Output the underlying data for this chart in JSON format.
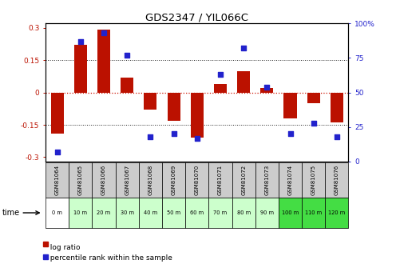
{
  "title": "GDS2347 / YIL066C",
  "samples": [
    "GSM81064",
    "GSM81065",
    "GSM81066",
    "GSM81067",
    "GSM81068",
    "GSM81069",
    "GSM81070",
    "GSM81071",
    "GSM81072",
    "GSM81073",
    "GSM81074",
    "GSM81075",
    "GSM81076"
  ],
  "time_labels": [
    "0 m",
    "10 m",
    "20 m",
    "30 m",
    "40 m",
    "50 m",
    "60 m",
    "70 m",
    "80 m",
    "90 m",
    "100 m",
    "110 m",
    "120 m"
  ],
  "log_ratio": [
    -0.19,
    0.22,
    0.29,
    0.07,
    -0.08,
    -0.13,
    -0.21,
    0.04,
    0.1,
    0.02,
    -0.12,
    -0.05,
    -0.14
  ],
  "percentile": [
    7,
    87,
    93,
    77,
    18,
    20,
    17,
    63,
    82,
    54,
    20,
    28,
    18
  ],
  "bar_color": "#bb1100",
  "dot_color": "#2222cc",
  "ylim_left": [
    -0.32,
    0.32
  ],
  "ylim_right": [
    0,
    100
  ],
  "yticks_left": [
    -0.3,
    -0.15,
    0.0,
    0.15,
    0.3
  ],
  "yticks_right": [
    0,
    25,
    50,
    75,
    100
  ],
  "hline_color": "#cc1100",
  "dotted_color": "#222222",
  "time_row_colors": [
    "#ffffff",
    "#ccffcc",
    "#ccffcc",
    "#ccffcc",
    "#ccffcc",
    "#ccffcc",
    "#ccffcc",
    "#ccffcc",
    "#ccffcc",
    "#ccffcc",
    "#44dd44",
    "#44dd44",
    "#44dd44"
  ],
  "gsm_row_color": "#cccccc",
  "legend_log_ratio": "log ratio",
  "legend_percentile": "percentile rank within the sample"
}
